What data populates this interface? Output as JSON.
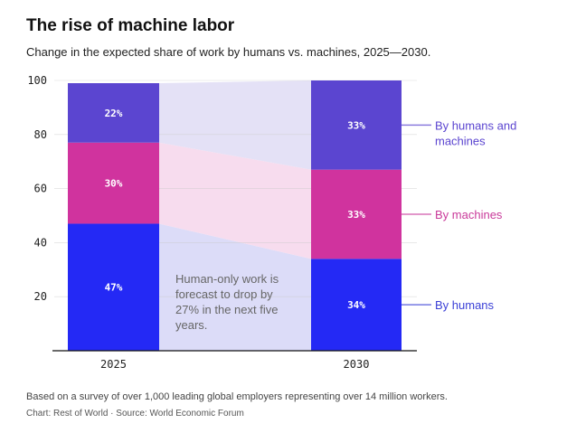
{
  "chart_data": {
    "type": "bar",
    "stacked": true,
    "title": "The rise of machine labor",
    "subtitle": "Change in the expected share of work by humans vs. machines, 2025—2030.",
    "categories": [
      "2025",
      "2030"
    ],
    "ylim": [
      0,
      100
    ],
    "yticks": [
      20,
      40,
      60,
      80,
      100
    ],
    "series": [
      {
        "name": "By humans",
        "values": [
          47,
          34
        ],
        "labels": [
          "47%",
          "34%"
        ],
        "color": "#2429f5",
        "band": "#dcdcf8",
        "label_color": "#3a3fd6"
      },
      {
        "name": "By machines",
        "values": [
          30,
          33
        ],
        "labels": [
          "30%",
          "33%"
        ],
        "color": "#d0339e",
        "band": "#f7dcee",
        "label_color": "#c93a9a"
      },
      {
        "name": "By humans and machines",
        "values": [
          22,
          33
        ],
        "labels": [
          "22%",
          "33%"
        ],
        "color": "#5b45d0",
        "band": "#e4e1f6",
        "label_color": "#5b45d0",
        "label_lines": [
          "By humans and",
          "machines"
        ]
      }
    ],
    "annotation": [
      "Human-only work is",
      "forecast to drop by",
      "27% in the next five",
      "years."
    ]
  },
  "note": "Based on a survey of over 1,000 leading global employers representing over 14 million workers.",
  "credit": "Chart: Rest of World · Source: World Economic Forum"
}
